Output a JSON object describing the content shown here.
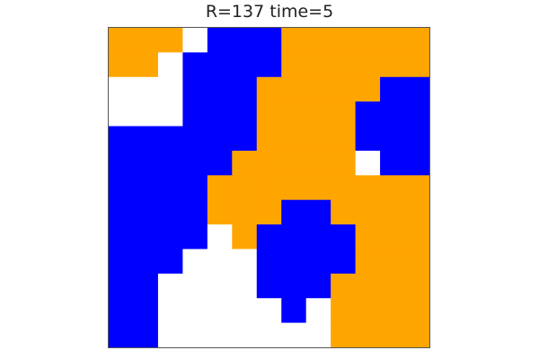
{
  "title": "R=137 time=5",
  "colors": {
    "0": "#ffffff",
    "1": "#0000ff",
    "2": "#ffa500"
  },
  "grid": {
    "rows": 13,
    "cols": 13,
    "cells": [
      [
        2,
        2,
        2,
        0,
        1,
        1,
        1,
        2,
        2,
        2,
        2,
        2,
        2
      ],
      [
        2,
        2,
        0,
        1,
        1,
        1,
        1,
        2,
        2,
        2,
        2,
        2,
        2
      ],
      [
        0,
        0,
        0,
        1,
        1,
        1,
        2,
        2,
        2,
        2,
        2,
        1,
        1
      ],
      [
        0,
        0,
        0,
        1,
        1,
        1,
        2,
        2,
        2,
        2,
        1,
        1,
        1
      ],
      [
        1,
        1,
        1,
        1,
        1,
        1,
        2,
        2,
        2,
        2,
        1,
        1,
        1
      ],
      [
        1,
        1,
        1,
        1,
        1,
        2,
        2,
        2,
        2,
        2,
        0,
        1,
        1
      ],
      [
        1,
        1,
        1,
        1,
        2,
        2,
        2,
        2,
        2,
        2,
        2,
        2,
        2
      ],
      [
        1,
        1,
        1,
        1,
        2,
        2,
        2,
        1,
        1,
        2,
        2,
        2,
        2
      ],
      [
        1,
        1,
        1,
        1,
        0,
        2,
        1,
        1,
        1,
        1,
        2,
        2,
        2
      ],
      [
        1,
        1,
        1,
        0,
        0,
        0,
        1,
        1,
        1,
        1,
        2,
        2,
        2
      ],
      [
        1,
        1,
        0,
        0,
        0,
        0,
        1,
        1,
        1,
        2,
        2,
        2,
        2
      ],
      [
        1,
        1,
        0,
        0,
        0,
        0,
        0,
        1,
        0,
        2,
        2,
        2,
        2
      ],
      [
        1,
        1,
        0,
        0,
        0,
        0,
        0,
        0,
        0,
        2,
        2,
        2,
        2
      ]
    ]
  }
}
